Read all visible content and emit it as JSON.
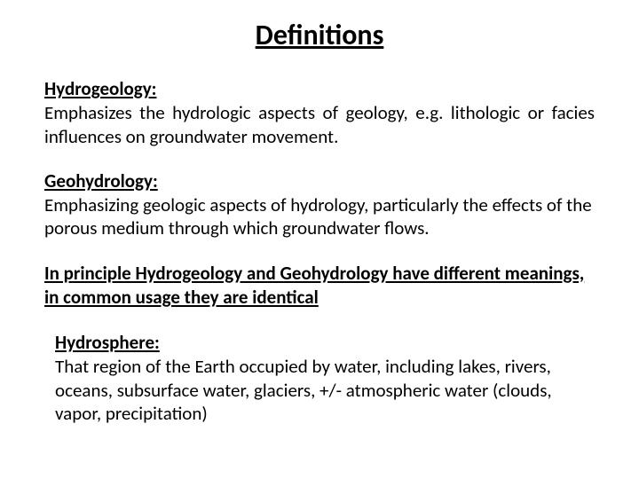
{
  "title": "Definitions",
  "definitions": [
    {
      "term": "Hydrogeology:",
      "body": "Emphasizes the hydrologic aspects of geology, e.g. lithologic or facies influences on groundwater movement.",
      "justified": true
    },
    {
      "term": "Geohydrology:",
      "body": "Emphasizing geologic aspects of hydrology, particularly the effects of the porous medium through which groundwater flows.",
      "justified": false
    }
  ],
  "principle_note": "In principle Hydrogeology and Geohydrology have different meanings, in common usage they are identical",
  "hydrosphere": {
    "term": "Hydrosphere:",
    "body": "That region of the Earth occupied by water, including lakes, rivers, oceans, subsurface water, glaciers, +/- atmospheric water (clouds, vapor, precipitation)"
  },
  "colors": {
    "background": "#ffffff",
    "text": "#000000"
  },
  "typography": {
    "title_fontsize": 32,
    "body_fontsize": 21,
    "font_family": "Calibri"
  }
}
